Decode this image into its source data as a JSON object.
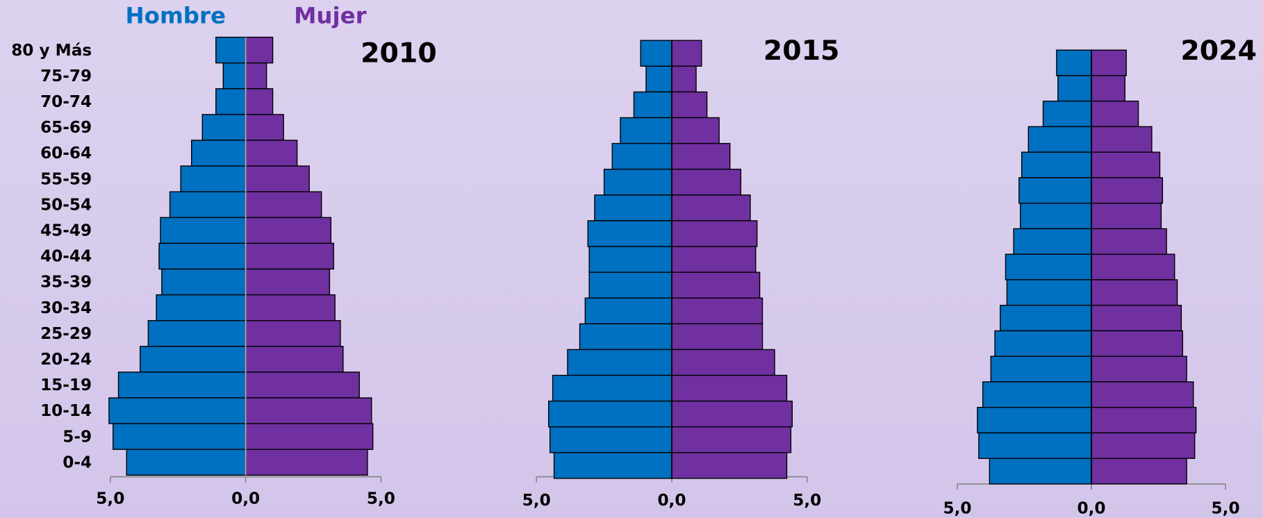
{
  "chart_data": [
    {
      "type": "pyramid",
      "title": "2010",
      "categories": [
        "80 y Más",
        "75-79",
        "70-74",
        "65-69",
        "60-64",
        "55-59",
        "50-54",
        "45-49",
        "40-44",
        "35-39",
        "30-34",
        "25-29",
        "20-24",
        "15-19",
        "10-14",
        "5-9",
        "0-4"
      ],
      "series": [
        {
          "name": "Hombre",
          "color": "#0070c0",
          "values": [
            1.1,
            0.83,
            1.1,
            1.6,
            2.0,
            2.4,
            2.8,
            3.15,
            3.2,
            3.1,
            3.3,
            3.6,
            3.9,
            4.7,
            5.05,
            4.9,
            4.4
          ]
        },
        {
          "name": "Mujer",
          "color": "#7030a0",
          "values": [
            1.0,
            0.77,
            1.0,
            1.4,
            1.9,
            2.35,
            2.8,
            3.15,
            3.25,
            3.1,
            3.3,
            3.5,
            3.6,
            4.2,
            4.65,
            4.7,
            4.5
          ]
        }
      ],
      "xlim": [
        -5,
        5
      ],
      "xticks": [
        {
          "value": -5,
          "label": "5,0"
        },
        {
          "value": 0,
          "label": "0,0"
        },
        {
          "value": 5,
          "label": "5,0"
        }
      ]
    },
    {
      "type": "pyramid",
      "title": "2015",
      "series": [
        {
          "color": "#0070c0",
          "values": [
            1.15,
            0.95,
            1.4,
            1.9,
            2.2,
            2.5,
            2.85,
            3.1,
            3.05,
            3.05,
            3.2,
            3.4,
            3.85,
            4.4,
            4.55,
            4.5,
            4.35
          ]
        },
        {
          "color": "#7030a0",
          "values": [
            1.1,
            0.9,
            1.3,
            1.75,
            2.15,
            2.55,
            2.9,
            3.15,
            3.1,
            3.25,
            3.35,
            3.35,
            3.8,
            4.25,
            4.45,
            4.4,
            4.25
          ]
        }
      ],
      "xlim": [
        -5,
        5
      ],
      "xticks": [
        {
          "value": -5,
          "label": "5,0"
        },
        {
          "value": 0,
          "label": "0,0"
        },
        {
          "value": 5,
          "label": "5,0"
        }
      ]
    },
    {
      "type": "pyramid",
      "title": "2024",
      "series": [
        {
          "color": "#0070c0",
          "values": [
            1.3,
            1.25,
            1.8,
            2.35,
            2.6,
            2.7,
            2.65,
            2.9,
            3.2,
            3.15,
            3.4,
            3.6,
            3.75,
            4.05,
            4.25,
            4.2,
            3.8
          ]
        },
        {
          "color": "#7030a0",
          "values": [
            1.3,
            1.25,
            1.75,
            2.25,
            2.55,
            2.65,
            2.6,
            2.8,
            3.1,
            3.2,
            3.35,
            3.4,
            3.55,
            3.8,
            3.9,
            3.85,
            3.55
          ]
        }
      ],
      "xlim": [
        -5,
        5
      ],
      "xticks": [
        {
          "value": -5,
          "label": "5,0"
        },
        {
          "value": 0,
          "label": "0,0"
        },
        {
          "value": 5,
          "label": "5,0"
        }
      ]
    }
  ]
}
